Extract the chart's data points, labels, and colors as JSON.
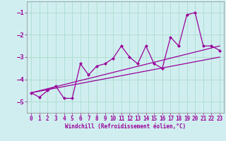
{
  "title": "",
  "xlabel": "Windchill (Refroidissement éolien,°C)",
  "ylabel": "",
  "background_color": "#d0eef0",
  "grid_color": "#aaddcc",
  "line_color": "#990099",
  "xlim": [
    -0.5,
    23.5
  ],
  "ylim": [
    -5.5,
    -0.5
  ],
  "yticks": [
    -5,
    -4,
    -3,
    -2,
    -1
  ],
  "xticks": [
    0,
    1,
    2,
    3,
    4,
    5,
    6,
    7,
    8,
    9,
    10,
    11,
    12,
    13,
    14,
    15,
    16,
    17,
    18,
    19,
    20,
    21,
    22,
    23
  ],
  "line1_x": [
    0,
    1,
    2,
    3,
    4,
    5,
    6,
    7,
    8,
    9,
    10,
    11,
    12,
    13,
    14,
    15,
    16,
    17,
    18,
    19,
    20,
    21,
    22,
    23
  ],
  "line1_y": [
    -4.6,
    -4.8,
    -4.5,
    -4.3,
    -4.85,
    -4.85,
    -3.3,
    -3.8,
    -3.4,
    -3.3,
    -3.05,
    -2.5,
    -3.0,
    -3.3,
    -2.5,
    -3.3,
    -3.5,
    -2.1,
    -2.5,
    -1.1,
    -1.0,
    -2.5,
    -2.5,
    -2.7
  ],
  "line2_x": [
    0,
    23
  ],
  "line2_y": [
    -4.6,
    -2.5
  ],
  "line3_x": [
    0,
    23
  ],
  "line3_y": [
    -4.6,
    -3.0
  ]
}
